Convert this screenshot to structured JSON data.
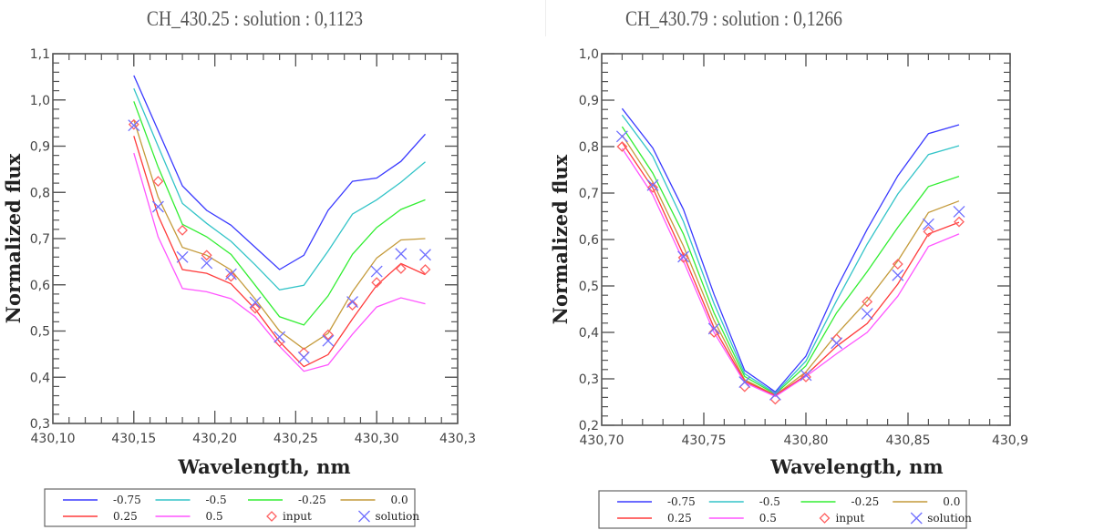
{
  "chart_data": [
    {
      "type": "line",
      "title": "CH_430.25 : solution : 0,1123",
      "xlabel": "Wavelength, nm",
      "ylabel": "Normalized flux",
      "xlim": [
        430.1,
        430.35
      ],
      "ylim": [
        0.3,
        1.1
      ],
      "xticks": [
        430.1,
        430.15,
        430.2,
        430.25,
        430.3,
        430.35
      ],
      "xtick_labels": [
        "430,10",
        "430,15",
        "430,20",
        "430,25",
        "430,30",
        "430,3"
      ],
      "yticks": [
        0.3,
        0.4,
        0.5,
        0.6,
        0.7,
        0.8,
        0.9,
        1.0,
        1.1
      ],
      "ytick_labels": [
        "0,3",
        "0,4",
        "0,5",
        "0,6",
        "0,7",
        "0,8",
        "0,9",
        "1,0",
        "1,1"
      ],
      "x": [
        430.15,
        430.165,
        430.18,
        430.195,
        430.21,
        430.225,
        430.24,
        430.255,
        430.27,
        430.285,
        430.3,
        430.315,
        430.33
      ],
      "series": [
        {
          "name": "-0.75",
          "kind": "line",
          "color": "#3a3aff",
          "values": [
            1.053,
            0.934,
            0.814,
            0.761,
            0.729,
            0.681,
            0.633,
            0.664,
            0.761,
            0.824,
            0.831,
            0.867,
            0.926
          ]
        },
        {
          "name": "-0.5",
          "kind": "line",
          "color": "#33c4c8",
          "values": [
            1.025,
            0.9,
            0.776,
            0.733,
            0.694,
            0.643,
            0.589,
            0.599,
            0.673,
            0.753,
            0.784,
            0.822,
            0.866
          ]
        },
        {
          "name": "-0.25",
          "kind": "line",
          "color": "#33ee33",
          "values": [
            0.997,
            0.855,
            0.731,
            0.704,
            0.666,
            0.599,
            0.531,
            0.513,
            0.576,
            0.666,
            0.724,
            0.763,
            0.784
          ]
        },
        {
          "name": "0.0",
          "kind": "line",
          "color": "#c49a3a",
          "values": [
            0.957,
            0.79,
            0.681,
            0.664,
            0.632,
            0.569,
            0.5,
            0.461,
            0.495,
            0.585,
            0.658,
            0.697,
            0.7
          ]
        },
        {
          "name": "0.25",
          "kind": "line",
          "color": "#ff3b3b",
          "values": [
            0.922,
            0.75,
            0.633,
            0.625,
            0.602,
            0.547,
            0.477,
            0.423,
            0.449,
            0.526,
            0.599,
            0.646,
            0.622
          ]
        },
        {
          "name": "0.5",
          "kind": "line",
          "color": "#ff55ff",
          "values": [
            0.885,
            0.704,
            0.592,
            0.585,
            0.57,
            0.531,
            0.467,
            0.413,
            0.427,
            0.493,
            0.552,
            0.572,
            0.559
          ]
        },
        {
          "name": "input",
          "kind": "diamond",
          "color": "#ff6060",
          "values": [
            0.947,
            0.824,
            0.718,
            0.664,
            0.618,
            0.549,
            0.477,
            0.453,
            0.492,
            0.556,
            0.605,
            0.635,
            0.633
          ]
        },
        {
          "name": "solution",
          "kind": "cross",
          "color": "#6f6fff",
          "values": [
            0.945,
            0.769,
            0.66,
            0.647,
            0.623,
            0.562,
            0.487,
            0.443,
            0.479,
            0.563,
            0.629,
            0.667,
            0.665
          ]
        }
      ],
      "legend_position": "bottom"
    },
    {
      "type": "line",
      "title": "CH_430.79 : solution : 0,1266",
      "xlabel": "Wavelength, nm",
      "ylabel": "Normalized flux",
      "xlim": [
        430.7,
        430.9
      ],
      "ylim": [
        0.2,
        1.0
      ],
      "xticks": [
        430.7,
        430.75,
        430.8,
        430.85,
        430.9
      ],
      "xtick_labels": [
        "430,70",
        "430,75",
        "430,80",
        "430,85",
        "430,9"
      ],
      "yticks": [
        0.2,
        0.3,
        0.4,
        0.5,
        0.6,
        0.7,
        0.8,
        0.9,
        1.0
      ],
      "ytick_labels": [
        "0,2",
        "0,3",
        "0,4",
        "0,5",
        "0,6",
        "0,7",
        "0,8",
        "0,9",
        "1,0"
      ],
      "x": [
        430.71,
        430.725,
        430.74,
        430.755,
        430.77,
        430.785,
        430.8,
        430.815,
        430.83,
        430.845,
        430.86,
        430.875
      ],
      "series": [
        {
          "name": "-0.75",
          "kind": "line",
          "color": "#3a3aff",
          "values": [
            0.882,
            0.797,
            0.665,
            0.482,
            0.318,
            0.272,
            0.349,
            0.495,
            0.622,
            0.737,
            0.828,
            0.847
          ]
        },
        {
          "name": "-0.5",
          "kind": "line",
          "color": "#33c4c8",
          "values": [
            0.868,
            0.779,
            0.639,
            0.462,
            0.311,
            0.269,
            0.338,
            0.468,
            0.59,
            0.698,
            0.783,
            0.802
          ]
        },
        {
          "name": "-0.25",
          "kind": "line",
          "color": "#33ee33",
          "values": [
            0.843,
            0.743,
            0.612,
            0.442,
            0.305,
            0.267,
            0.328,
            0.442,
            0.531,
            0.626,
            0.714,
            0.736
          ]
        },
        {
          "name": "0.0",
          "kind": "line",
          "color": "#c49a3a",
          "values": [
            0.825,
            0.724,
            0.586,
            0.426,
            0.298,
            0.265,
            0.315,
            0.396,
            0.468,
            0.554,
            0.658,
            0.683
          ]
        },
        {
          "name": "0.25",
          "kind": "line",
          "color": "#ff3b3b",
          "values": [
            0.809,
            0.711,
            0.567,
            0.41,
            0.295,
            0.264,
            0.308,
            0.37,
            0.419,
            0.504,
            0.612,
            0.637
          ]
        },
        {
          "name": "0.5",
          "kind": "line",
          "color": "#ff55ff",
          "values": [
            0.796,
            0.696,
            0.554,
            0.4,
            0.292,
            0.262,
            0.305,
            0.354,
            0.4,
            0.478,
            0.585,
            0.612
          ]
        },
        {
          "name": "input",
          "kind": "diamond",
          "color": "#ff6060",
          "values": [
            0.8,
            0.712,
            0.561,
            0.4,
            0.283,
            0.256,
            0.304,
            0.386,
            0.466,
            0.547,
            0.617,
            0.638
          ]
        },
        {
          "name": "solution",
          "kind": "cross",
          "color": "#6f6fff",
          "values": [
            0.822,
            0.717,
            0.563,
            0.408,
            0.293,
            0.266,
            0.308,
            0.377,
            0.44,
            0.523,
            0.633,
            0.66
          ]
        }
      ],
      "legend_position": "bottom"
    }
  ]
}
